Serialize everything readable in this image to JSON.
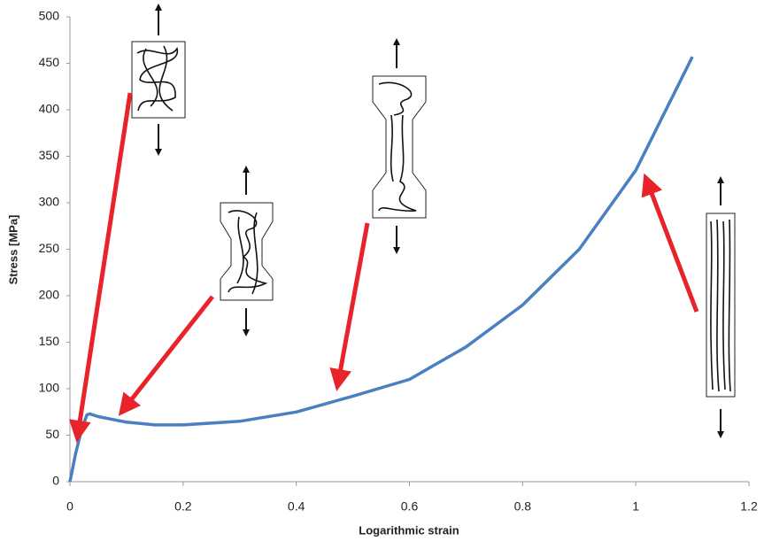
{
  "chart_data": {
    "type": "line",
    "x_label": "Logarithmic strain",
    "y_label": "Stress [MPa]",
    "x": [
      0,
      0.01,
      0.02,
      0.03,
      0.035,
      0.05,
      0.1,
      0.15,
      0.2,
      0.3,
      0.4,
      0.5,
      0.6,
      0.7,
      0.8,
      0.9,
      1.0,
      1.1
    ],
    "values": [
      0,
      30,
      55,
      72,
      73,
      70,
      64,
      61,
      61,
      65,
      75,
      92,
      110,
      145,
      190,
      250,
      335,
      457
    ],
    "color": "#4a7fc1",
    "xlim": [
      0,
      1.2
    ],
    "xticks": [
      0,
      0.2,
      0.4,
      0.6,
      0.8,
      1,
      1.2
    ],
    "ylim": [
      0,
      500
    ],
    "yticks": [
      0,
      50,
      100,
      150,
      200,
      250,
      300,
      350,
      400,
      450,
      500
    ],
    "grid": false
  }
}
